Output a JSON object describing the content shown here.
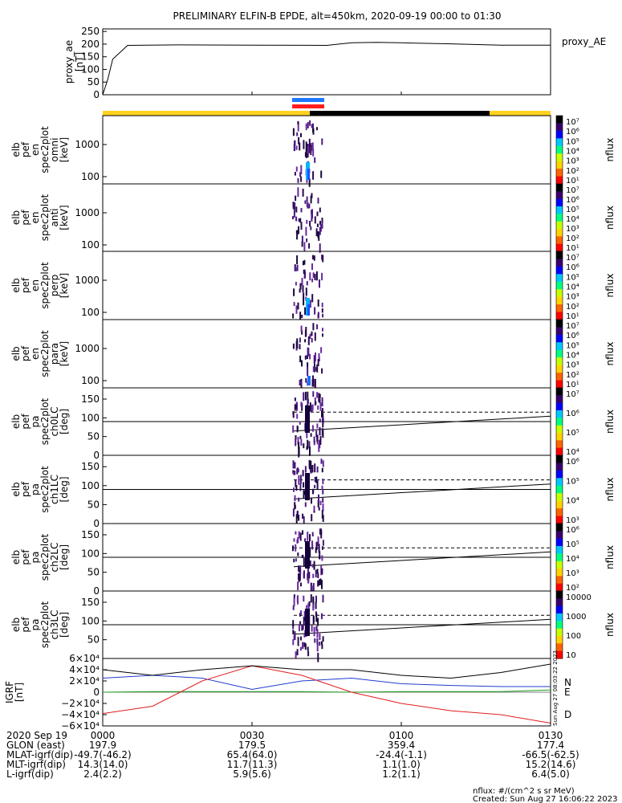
{
  "title": "PRELIMINARY ELFIN-B EPDE, alt=450km, 2020-09-19 00:00 to 01:30",
  "colors": {
    "bar_yellow": "#ffd21e",
    "bar_black": "#000000",
    "marker_blue": "#1e78ff",
    "marker_red": "#ff1e1e",
    "grf_n": "#1f3ccf",
    "grf_e": "#23a023",
    "grf_d": "#e11d1d"
  },
  "time_axis": {
    "labels": [
      "0000",
      "0030",
      "0100",
      "0130"
    ],
    "range_min": [
      0,
      90
    ]
  },
  "chart_data": [
    {
      "type": "line",
      "id": "proxy_ae",
      "ylabel": [
        "proxy_ae",
        "[nT]"
      ],
      "legend": "proxy_AE",
      "yticks": [
        "250",
        "200",
        "150",
        "100",
        "50",
        "0"
      ],
      "ylim": [
        0,
        260
      ],
      "x": [
        0,
        1,
        2,
        5,
        15,
        30,
        45,
        50,
        55,
        60,
        70,
        80,
        85,
        90
      ],
      "y": [
        0,
        60,
        140,
        195,
        197,
        196,
        195,
        205,
        207,
        205,
        201,
        196,
        196,
        196
      ]
    },
    {
      "type": "heatmap",
      "id": "en_omni",
      "ylabel": [
        "elb",
        "pef",
        "en",
        "spec2plot",
        "omni",
        "[keV]"
      ],
      "yticks": [
        "1000",
        "100"
      ],
      "cb_unit": "nflux",
      "cb_ticks": [
        "10⁷",
        "10⁶",
        "10⁵",
        "10⁴",
        "10³",
        "10²",
        "10¹"
      ]
    },
    {
      "type": "heatmap",
      "id": "en_anti",
      "ylabel": [
        "elb",
        "pef",
        "en",
        "spec2plot",
        "anti",
        "[keV]"
      ],
      "yticks": [
        "1000",
        "100"
      ],
      "cb_unit": "nflux",
      "cb_ticks": [
        "10⁷",
        "10⁶",
        "10⁵",
        "10⁴",
        "10³",
        "10²",
        "10¹"
      ]
    },
    {
      "type": "heatmap",
      "id": "en_perp",
      "ylabel": [
        "elb",
        "pef",
        "en",
        "spec2plot",
        "perp",
        "[keV]"
      ],
      "yticks": [
        "1000",
        "100"
      ],
      "cb_unit": "nflux",
      "cb_ticks": [
        "10⁷",
        "10⁶",
        "10⁵",
        "10⁴",
        "10³",
        "10²",
        "10¹"
      ]
    },
    {
      "type": "heatmap",
      "id": "en_para",
      "ylabel": [
        "elb",
        "pef",
        "en",
        "spec2plot",
        "para",
        "[keV]"
      ],
      "yticks": [
        "1000",
        "100"
      ],
      "cb_unit": "nflux",
      "cb_ticks": [
        "10⁷",
        "10⁶",
        "10⁵",
        "10⁴",
        "10³",
        "10²",
        "10¹"
      ]
    },
    {
      "type": "heatmap",
      "id": "pa_ch0",
      "ylabel": [
        "elb",
        "pef",
        "pa",
        "spec2plot",
        "ch0LC",
        "[deg]"
      ],
      "yticks": [
        "150",
        "100",
        "50",
        "0"
      ],
      "cb_unit": "nflux",
      "cb_ticks": [
        "10⁷",
        "10⁶",
        "10⁵",
        "10⁴"
      ]
    },
    {
      "type": "heatmap",
      "id": "pa_ch1",
      "ylabel": [
        "elb",
        "pef",
        "pa",
        "spec2plot",
        "ch1LC",
        "[deg]"
      ],
      "yticks": [
        "150",
        "100",
        "50",
        "0"
      ],
      "cb_unit": "nflux",
      "cb_ticks": [
        "10⁶",
        "10⁵",
        "10⁴",
        "10³"
      ]
    },
    {
      "type": "heatmap",
      "id": "pa_ch2",
      "ylabel": [
        "elb",
        "pef",
        "pa",
        "spec2plot",
        "ch2LC",
        "[deg]"
      ],
      "yticks": [
        "150",
        "100",
        "50",
        "0"
      ],
      "cb_unit": "nflux",
      "cb_ticks": [
        "10⁶",
        "10⁵",
        "10⁴",
        "10³",
        "10²"
      ]
    },
    {
      "type": "heatmap",
      "id": "pa_ch3",
      "ylabel": [
        "elb",
        "pef",
        "pa",
        "spec2plot",
        "ch3LC",
        "[deg]"
      ],
      "yticks": [
        "150",
        "100",
        "50"
      ],
      "cb_unit": "nflux",
      "cb_ticks": [
        "10000",
        "1000",
        "100",
        "10"
      ]
    },
    {
      "type": "line",
      "id": "igrf",
      "ylabel": [
        "IGRF",
        "[nT]"
      ],
      "yticks": [
        "6×10⁴",
        "4×10⁴",
        "2×10⁴",
        "0",
        "−2×10⁴",
        "−4×10⁴",
        "−6×10⁴"
      ],
      "ylim": [
        -60000,
        60000
      ],
      "x": [
        0,
        10,
        20,
        30,
        40,
        50,
        60,
        70,
        80,
        90
      ],
      "series": [
        {
          "name": "N",
          "values": [
            25000,
            30000,
            25000,
            5000,
            20000,
            25000,
            15000,
            12000,
            10000,
            10000
          ]
        },
        {
          "name": "E",
          "values": [
            0,
            1000,
            1000,
            1000,
            1000,
            0,
            1000,
            1000,
            1000,
            4000
          ]
        },
        {
          "name": "D",
          "values": [
            -38000,
            -25000,
            20000,
            47000,
            30000,
            0,
            -20000,
            -33000,
            -40000,
            -55000
          ]
        },
        {
          "name": "",
          "values": [
            40000,
            30000,
            40000,
            47000,
            40000,
            40000,
            30000,
            25000,
            35000,
            50000
          ]
        }
      ]
    }
  ],
  "orbit_table": {
    "rows": [
      {
        "label": "2020 Sep 19",
        "values": [
          "0000",
          "0030",
          "0100",
          "0130"
        ]
      },
      {
        "label": "GLON (east)",
        "values": [
          "197.9",
          "179.5",
          "359.4",
          "177.4"
        ]
      },
      {
        "label": "MLAT-igrf(dip)",
        "values": [
          "-49.7(-46.2)",
          "65.4(64.0)",
          "-24.4(-1.1)",
          "-66.5(-62.5)"
        ]
      },
      {
        "label": "MLT-igrf(dip)",
        "values": [
          "14.3(14.0)",
          "11.7(11.3)",
          "1.1(1.0)",
          "15.2(14.6)"
        ]
      },
      {
        "label": "L-igrf(dip)",
        "values": [
          "2.4(2.2)",
          "5.9(5.6)",
          "1.2(1.1)",
          "6.4(5.0)"
        ]
      }
    ]
  },
  "footer": {
    "units": "nflux: #/(cm^2 s sr MeV)",
    "created": "Created: Sun Aug 27 16:06:22 2023",
    "side_stamp": "Sun Aug 27 08:03:22 2023"
  }
}
